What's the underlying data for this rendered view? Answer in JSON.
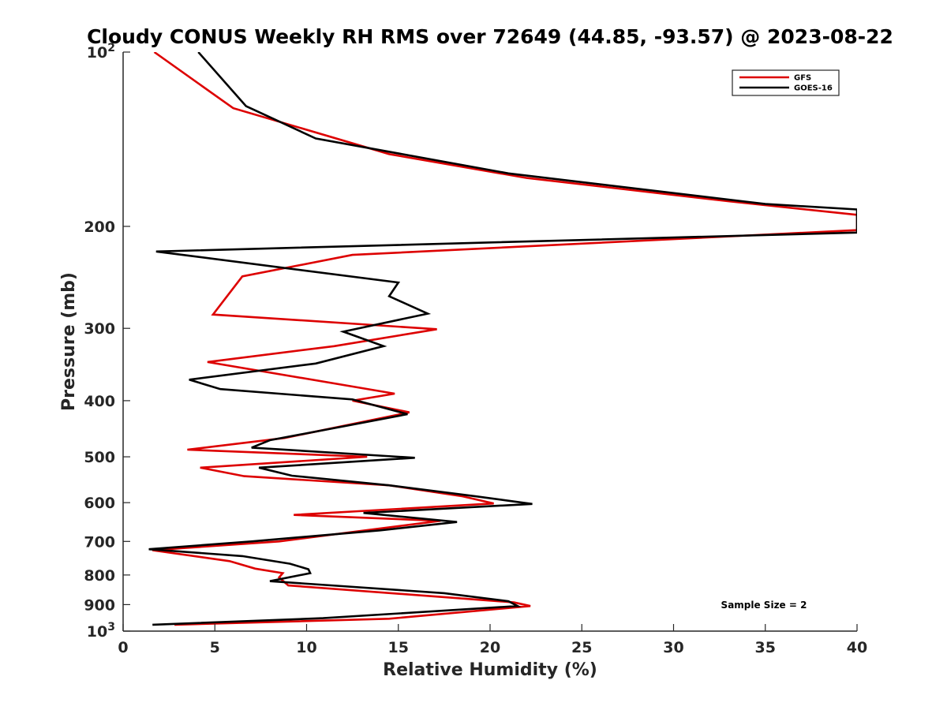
{
  "chart_data": {
    "type": "line",
    "title": "Cloudy CONUS Weekly RH RMS over 72649 (44.85, -93.57) @ 2023-08-22",
    "xlabel": "Relative Humidity (%)",
    "ylabel": "Pressure (mb)",
    "xlim": [
      0,
      40
    ],
    "ylim": [
      100,
      1000
    ],
    "y_scale": "log",
    "y_reversed": true,
    "grid": false,
    "legend_position": "top-right",
    "x_ticks": [
      0,
      5,
      10,
      15,
      20,
      25,
      30,
      35,
      40
    ],
    "x_tick_labels": [
      "0",
      "5",
      "10",
      "15",
      "20",
      "25",
      "30",
      "35",
      "40"
    ],
    "y_ticks": [
      100,
      200,
      300,
      400,
      500,
      600,
      700,
      800,
      900,
      1000
    ],
    "y_tick_labels": [
      {
        "base": "10",
        "exp": "2"
      },
      {
        "base": "200",
        "exp": ""
      },
      {
        "base": "300",
        "exp": ""
      },
      {
        "base": "400",
        "exp": ""
      },
      {
        "base": "500",
        "exp": ""
      },
      {
        "base": "600",
        "exp": ""
      },
      {
        "base": "700",
        "exp": ""
      },
      {
        "base": "800",
        "exp": ""
      },
      {
        "base": "900",
        "exp": ""
      },
      {
        "base": "10",
        "exp": "3"
      }
    ],
    "annotation": "Sample Size = 2",
    "series": [
      {
        "name": "GFS",
        "color": "#dd0000",
        "points": [
          [
            1.7,
            100
          ],
          [
            6.0,
            125
          ],
          [
            14.5,
            150
          ],
          [
            22.0,
            165
          ],
          [
            33.0,
            181
          ],
          [
            40.0,
            191
          ],
          [
            40.0,
            203
          ],
          [
            12.5,
            224
          ],
          [
            6.5,
            244
          ],
          [
            4.9,
            284
          ],
          [
            17.1,
            301
          ],
          [
            11.5,
            322
          ],
          [
            4.6,
            343
          ],
          [
            14.8,
            389
          ],
          [
            12.5,
            400
          ],
          [
            15.6,
            419
          ],
          [
            8.8,
            464
          ],
          [
            3.5,
            486
          ],
          [
            13.3,
            500
          ],
          [
            4.2,
            522
          ],
          [
            6.6,
            540
          ],
          [
            14.5,
            560
          ],
          [
            18.5,
            585
          ],
          [
            20.2,
            602
          ],
          [
            9.3,
            630
          ],
          [
            17.3,
            645
          ],
          [
            13.2,
            670
          ],
          [
            8.5,
            700
          ],
          [
            1.6,
            725
          ],
          [
            5.8,
            757
          ],
          [
            7.2,
            780
          ],
          [
            8.7,
            794
          ],
          [
            8.5,
            808
          ],
          [
            9.0,
            834
          ],
          [
            21.3,
            892
          ],
          [
            22.2,
            905
          ],
          [
            14.5,
            952
          ],
          [
            2.8,
            975
          ]
        ]
      },
      {
        "name": "GOES-16",
        "color": "#000000",
        "points": [
          [
            4.1,
            100
          ],
          [
            6.7,
            124
          ],
          [
            10.5,
            141
          ],
          [
            21.0,
            162
          ],
          [
            35.0,
            183
          ],
          [
            40.0,
            187
          ],
          [
            40.0,
            205
          ],
          [
            1.8,
            221
          ],
          [
            15.0,
            250
          ],
          [
            14.5,
            264
          ],
          [
            16.6,
            283
          ],
          [
            12.0,
            304
          ],
          [
            14.2,
            322
          ],
          [
            10.5,
            345
          ],
          [
            3.6,
            368
          ],
          [
            5.3,
            382
          ],
          [
            12.5,
            398
          ],
          [
            15.5,
            422
          ],
          [
            12.0,
            443
          ],
          [
            8.0,
            468
          ],
          [
            7.0,
            482
          ],
          [
            15.9,
            502
          ],
          [
            7.4,
            522
          ],
          [
            9.2,
            539
          ],
          [
            14.5,
            560
          ],
          [
            19.2,
            585
          ],
          [
            22.3,
            603
          ],
          [
            13.1,
            625
          ],
          [
            18.2,
            648
          ],
          [
            14.0,
            670
          ],
          [
            7.0,
            700
          ],
          [
            1.4,
            722
          ],
          [
            6.5,
            742
          ],
          [
            9.1,
            765
          ],
          [
            10.1,
            782
          ],
          [
            10.2,
            794
          ],
          [
            8.0,
            820
          ],
          [
            17.5,
            860
          ],
          [
            21.0,
            888
          ],
          [
            21.5,
            905
          ],
          [
            10.9,
            950
          ],
          [
            1.6,
            975
          ]
        ]
      }
    ]
  }
}
